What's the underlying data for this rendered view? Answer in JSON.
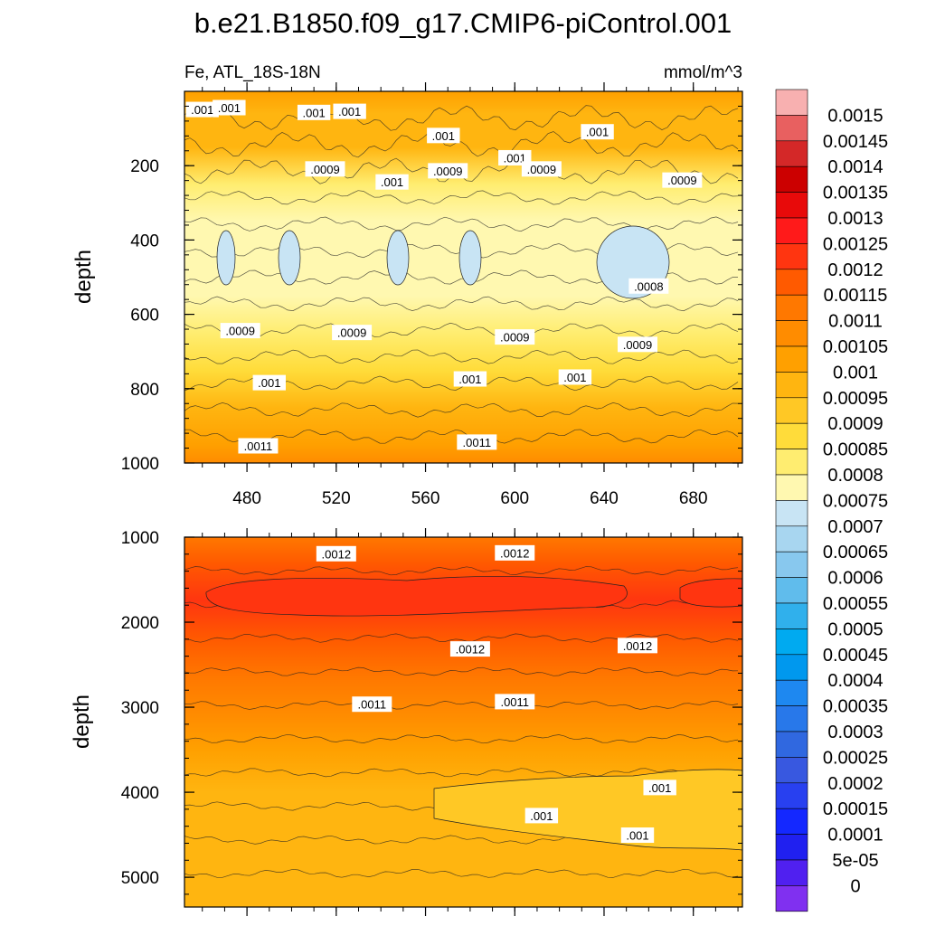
{
  "chart_data": {
    "type": "heatmap",
    "title": "b.e21.B1850.f09_g17.CMIP6-piControl.001",
    "variable": "Fe, ATL_18S-18N",
    "units": "mmol/m^3",
    "xlim": [
      452,
      702
    ],
    "x_ticks": [
      "480",
      "520",
      "560",
      "600",
      "640",
      "680"
    ],
    "x_tick_values": [
      480,
      520,
      560,
      600,
      640,
      680
    ],
    "panels": [
      {
        "name": "upper",
        "ylabel": "depth",
        "ylim": [
          0,
          1000
        ],
        "y_ticks": [
          "200",
          "400",
          "600",
          "800",
          "1000"
        ],
        "y_tick_values": [
          200,
          400,
          600,
          800,
          1000
        ],
        "profile_depths": [
          0,
          60,
          150,
          250,
          350,
          450,
          550,
          650,
          750,
          850,
          950,
          1000
        ],
        "profile_values": [
          0.00108,
          0.00103,
          0.001,
          0.00087,
          0.00082,
          0.0008,
          0.00081,
          0.00087,
          0.00094,
          0.001,
          0.00107,
          0.0011
        ],
        "contour_labels": [
          {
            "text": ".001",
            "x": 460,
            "y": 50
          },
          {
            "text": ".001",
            "x": 472,
            "y": 45
          },
          {
            "text": ".001",
            "x": 510,
            "y": 58
          },
          {
            "text": ".001",
            "x": 526,
            "y": 55
          },
          {
            "text": ".001",
            "x": 568,
            "y": 120
          },
          {
            "text": ".001",
            "x": 600,
            "y": 180
          },
          {
            "text": ".001",
            "x": 637,
            "y": 110
          },
          {
            "text": ".001",
            "x": 545,
            "y": 245
          },
          {
            "text": ".0009",
            "x": 515,
            "y": 210
          },
          {
            "text": ".0009",
            "x": 570,
            "y": 215
          },
          {
            "text": ".0009",
            "x": 612,
            "y": 210
          },
          {
            "text": ".0009",
            "x": 675,
            "y": 240
          },
          {
            "text": ".0008",
            "x": 660,
            "y": 525
          },
          {
            "text": ".0009",
            "x": 477,
            "y": 645
          },
          {
            "text": ".0009",
            "x": 527,
            "y": 650
          },
          {
            "text": ".0009",
            "x": 600,
            "y": 662
          },
          {
            "text": ".0009",
            "x": 655,
            "y": 682
          },
          {
            "text": ".001",
            "x": 490,
            "y": 785
          },
          {
            "text": ".001",
            "x": 580,
            "y": 775
          },
          {
            "text": ".001",
            "x": 627,
            "y": 770
          },
          {
            "text": ".0011",
            "x": 485,
            "y": 955
          },
          {
            "text": ".0011",
            "x": 583,
            "y": 945
          }
        ]
      },
      {
        "name": "lower",
        "ylabel": "depth",
        "ylim": [
          1000,
          5350
        ],
        "y_ticks": [
          "1000",
          "2000",
          "3000",
          "4000",
          "5000"
        ],
        "y_tick_values": [
          1000,
          2000,
          3000,
          4000,
          5000
        ],
        "profile_depths": [
          1000,
          1300,
          1750,
          2200,
          2650,
          3100,
          3500,
          4000,
          4500,
          5000,
          5350
        ],
        "profile_values": [
          0.00115,
          0.0012,
          0.00125,
          0.0012,
          0.00117,
          0.00112,
          0.00105,
          0.00103,
          0.001,
          0.00103,
          0.00104
        ],
        "contour_labels": [
          {
            "text": ".0012",
            "x": 520,
            "y": 1200
          },
          {
            "text": ".0012",
            "x": 600,
            "y": 1190
          },
          {
            "text": ".0012",
            "x": 580,
            "y": 2320
          },
          {
            "text": ".0012",
            "x": 655,
            "y": 2280
          },
          {
            "text": ".0011",
            "x": 536,
            "y": 2970
          },
          {
            "text": ".0011",
            "x": 600,
            "y": 2940
          },
          {
            "text": ".001",
            "x": 665,
            "y": 3950
          },
          {
            "text": ".001",
            "x": 612,
            "y": 4280
          },
          {
            "text": ".001",
            "x": 655,
            "y": 4510
          }
        ]
      }
    ],
    "colorbar": {
      "labels": [
        "0.0015",
        "0.00145",
        "0.0014",
        "0.00135",
        "0.0013",
        "0.00125",
        "0.0012",
        "0.00115",
        "0.0011",
        "0.00105",
        "0.001",
        "0.00095",
        "0.0009",
        "0.00085",
        "0.0008",
        "0.00075",
        "0.0007",
        "0.00065",
        "0.0006",
        "0.00055",
        "0.0005",
        "0.00045",
        "0.0004",
        "0.00035",
        "0.0003",
        "0.00025",
        "0.0002",
        "0.00015",
        "0.0001",
        "5e-05",
        "0"
      ],
      "colors_top_to_bottom": [
        "#f8b0b0",
        "#e86060",
        "#d42828",
        "#cc0000",
        "#e80a0a",
        "#ff1a1a",
        "#ff3510",
        "#ff5a00",
        "#ff7800",
        "#ff8c00",
        "#ffa000",
        "#ffb510",
        "#ffc825",
        "#ffdc3a",
        "#ffed70",
        "#fff8b0",
        "#c8e4f4",
        "#a8d6f0",
        "#88c8ee",
        "#60bcec",
        "#30b0ec",
        "#00aaf0",
        "#0098ee",
        "#1e88f0",
        "#2878ea",
        "#3068e0",
        "#3858e0",
        "#2840f0",
        "#1428ff",
        "#2020f0",
        "#5020f0",
        "#8030f0"
      ]
    }
  }
}
